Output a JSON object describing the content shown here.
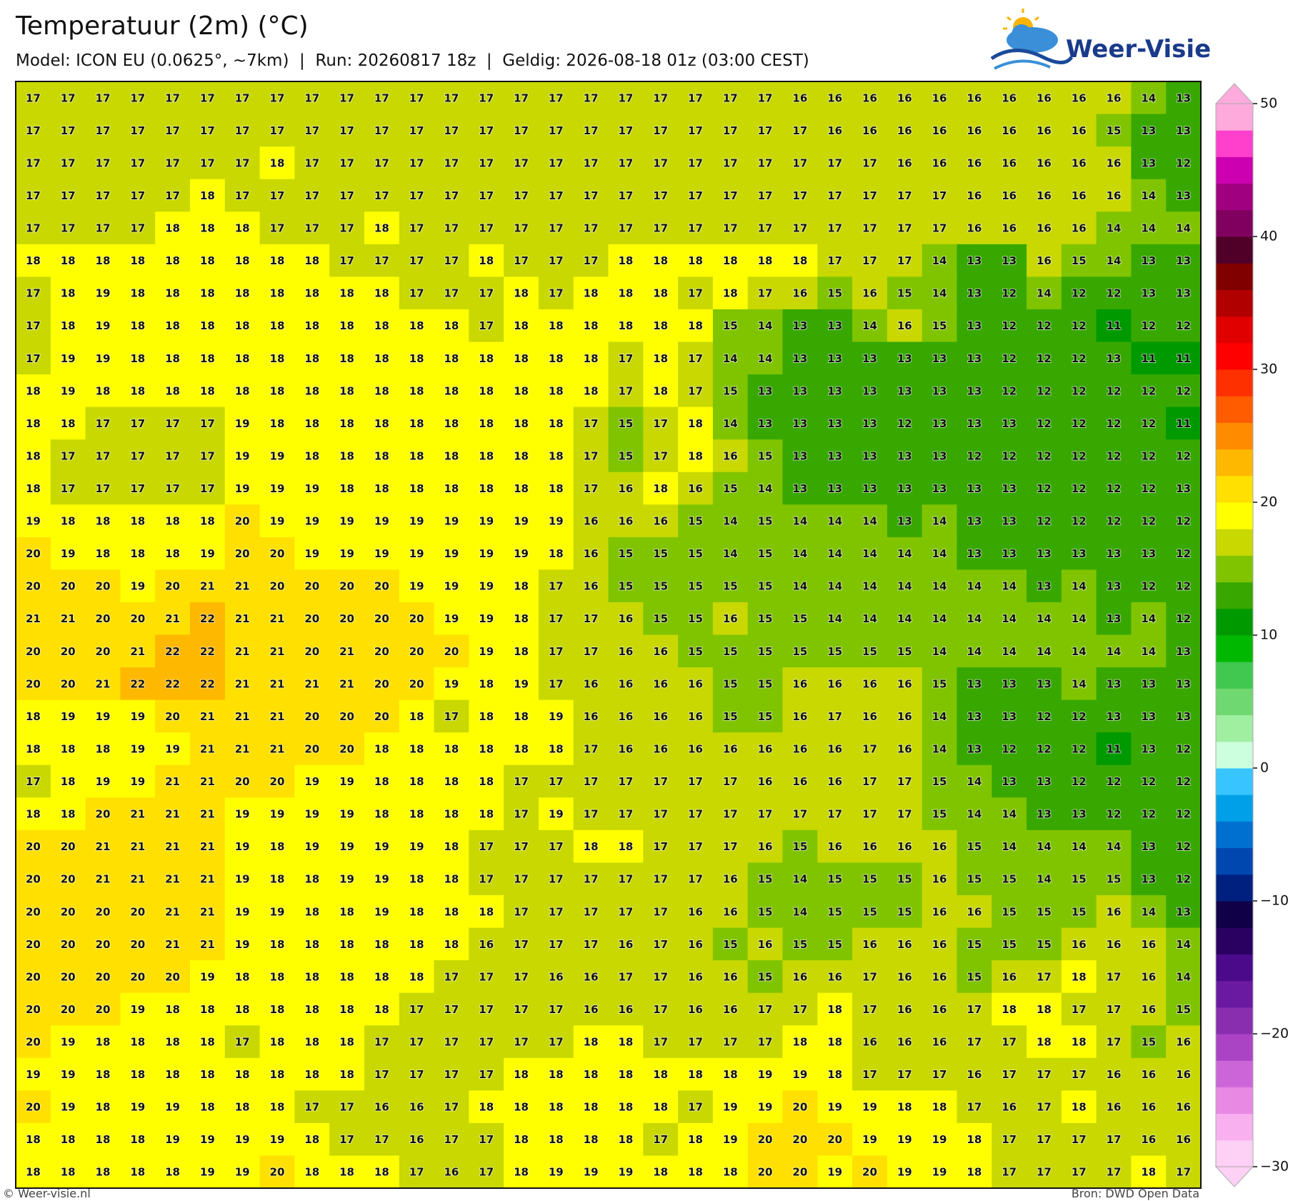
{
  "title": "Temperatuur (2m) (°C)",
  "subtitle": "Model: ICON EU (0.0625°, ~7km)  |  Run: 20260817 18z  |  Geldig: 2026-08-18 01z (03:00 CEST)",
  "logo": "Weer-Visie",
  "credit": "© Weer-visie.nl",
  "source": "Bron: DWD Open Data",
  "grid": [
    [
      17,
      17,
      17,
      17,
      17,
      17,
      17,
      17,
      17,
      17,
      17,
      17,
      17,
      17,
      17,
      17,
      17,
      17,
      17,
      17,
      17,
      17,
      16,
      16,
      16,
      16,
      16,
      16,
      16,
      16,
      16,
      16,
      14,
      13
    ],
    [
      17,
      17,
      17,
      17,
      17,
      17,
      17,
      17,
      17,
      17,
      17,
      17,
      17,
      17,
      17,
      17,
      17,
      17,
      17,
      17,
      17,
      17,
      17,
      16,
      16,
      16,
      16,
      16,
      16,
      16,
      16,
      15,
      13,
      13
    ],
    [
      17,
      17,
      17,
      17,
      17,
      17,
      17,
      18,
      17,
      17,
      17,
      17,
      17,
      17,
      17,
      17,
      17,
      17,
      17,
      17,
      17,
      17,
      17,
      17,
      17,
      16,
      16,
      16,
      16,
      16,
      16,
      16,
      13,
      12
    ],
    [
      17,
      17,
      17,
      17,
      17,
      18,
      17,
      17,
      17,
      17,
      17,
      17,
      17,
      17,
      17,
      17,
      17,
      17,
      17,
      17,
      17,
      17,
      17,
      17,
      17,
      17,
      17,
      16,
      16,
      16,
      16,
      16,
      14,
      13
    ],
    [
      17,
      17,
      17,
      17,
      18,
      18,
      18,
      17,
      17,
      17,
      18,
      17,
      17,
      17,
      17,
      17,
      17,
      17,
      17,
      17,
      17,
      17,
      17,
      17,
      17,
      17,
      17,
      16,
      16,
      16,
      16,
      14,
      14,
      14
    ],
    [
      18,
      18,
      18,
      18,
      18,
      18,
      18,
      18,
      18,
      17,
      17,
      17,
      17,
      18,
      17,
      17,
      17,
      18,
      18,
      18,
      18,
      18,
      18,
      17,
      17,
      17,
      14,
      13,
      13,
      16,
      15,
      14,
      13,
      13
    ],
    [
      17,
      18,
      19,
      18,
      18,
      18,
      18,
      18,
      18,
      18,
      18,
      17,
      17,
      17,
      18,
      17,
      18,
      18,
      18,
      17,
      18,
      17,
      16,
      15,
      16,
      15,
      14,
      13,
      12,
      14,
      12,
      12,
      13,
      13
    ],
    [
      17,
      18,
      19,
      18,
      18,
      18,
      18,
      18,
      18,
      18,
      18,
      18,
      18,
      17,
      18,
      18,
      18,
      18,
      18,
      18,
      15,
      14,
      13,
      13,
      14,
      16,
      15,
      13,
      12,
      12,
      12,
      11,
      12,
      12
    ],
    [
      17,
      19,
      19,
      18,
      18,
      18,
      18,
      18,
      18,
      18,
      18,
      18,
      18,
      18,
      18,
      18,
      18,
      17,
      18,
      17,
      14,
      14,
      13,
      13,
      13,
      13,
      13,
      13,
      12,
      12,
      12,
      13,
      11,
      11
    ],
    [
      18,
      19,
      18,
      18,
      18,
      18,
      18,
      18,
      18,
      18,
      18,
      18,
      18,
      18,
      18,
      18,
      18,
      17,
      18,
      17,
      15,
      13,
      13,
      13,
      13,
      13,
      13,
      13,
      12,
      12,
      12,
      12,
      12,
      12
    ],
    [
      18,
      18,
      17,
      17,
      17,
      17,
      19,
      18,
      18,
      18,
      18,
      18,
      18,
      18,
      18,
      18,
      17,
      15,
      17,
      18,
      14,
      13,
      13,
      13,
      13,
      12,
      13,
      13,
      13,
      12,
      12,
      12,
      12,
      11
    ],
    [
      18,
      17,
      17,
      17,
      17,
      17,
      19,
      19,
      18,
      18,
      18,
      18,
      18,
      18,
      18,
      18,
      17,
      15,
      17,
      18,
      16,
      15,
      13,
      13,
      13,
      13,
      13,
      12,
      12,
      12,
      12,
      12,
      12,
      12
    ],
    [
      18,
      17,
      17,
      17,
      17,
      17,
      19,
      19,
      19,
      18,
      18,
      18,
      18,
      18,
      18,
      18,
      17,
      16,
      18,
      16,
      15,
      14,
      13,
      13,
      13,
      13,
      13,
      13,
      13,
      12,
      12,
      12,
      12,
      13
    ],
    [
      19,
      18,
      18,
      18,
      18,
      18,
      20,
      19,
      19,
      19,
      19,
      19,
      19,
      19,
      19,
      19,
      16,
      16,
      16,
      15,
      14,
      15,
      14,
      14,
      14,
      13,
      14,
      13,
      13,
      12,
      12,
      12,
      12,
      12
    ],
    [
      20,
      19,
      18,
      18,
      18,
      19,
      20,
      20,
      19,
      19,
      19,
      19,
      19,
      19,
      19,
      18,
      16,
      15,
      15,
      15,
      14,
      15,
      14,
      14,
      14,
      14,
      14,
      13,
      13,
      13,
      13,
      13,
      13,
      12
    ],
    [
      20,
      20,
      20,
      19,
      20,
      21,
      21,
      20,
      20,
      20,
      20,
      19,
      19,
      19,
      18,
      17,
      16,
      15,
      15,
      15,
      15,
      15,
      14,
      14,
      14,
      14,
      14,
      14,
      14,
      13,
      14,
      13,
      12,
      12
    ],
    [
      21,
      21,
      20,
      20,
      21,
      22,
      21,
      21,
      20,
      20,
      20,
      20,
      19,
      19,
      18,
      17,
      17,
      16,
      15,
      15,
      16,
      15,
      15,
      14,
      14,
      14,
      14,
      14,
      14,
      14,
      14,
      13,
      14,
      12
    ],
    [
      20,
      20,
      20,
      21,
      22,
      22,
      21,
      21,
      20,
      21,
      20,
      20,
      20,
      19,
      18,
      17,
      17,
      16,
      16,
      15,
      15,
      15,
      15,
      15,
      15,
      15,
      14,
      14,
      14,
      14,
      14,
      14,
      14,
      13
    ],
    [
      20,
      20,
      21,
      22,
      22,
      22,
      21,
      21,
      21,
      21,
      20,
      20,
      19,
      18,
      19,
      17,
      16,
      16,
      16,
      16,
      15,
      15,
      16,
      16,
      16,
      16,
      15,
      13,
      13,
      13,
      14,
      13,
      13,
      13
    ],
    [
      18,
      19,
      19,
      19,
      20,
      21,
      21,
      21,
      20,
      20,
      20,
      18,
      17,
      18,
      18,
      19,
      16,
      16,
      16,
      16,
      15,
      15,
      16,
      17,
      16,
      16,
      14,
      13,
      13,
      12,
      12,
      13,
      13,
      13
    ],
    [
      18,
      18,
      18,
      19,
      19,
      21,
      21,
      21,
      20,
      20,
      18,
      18,
      18,
      18,
      18,
      18,
      17,
      16,
      16,
      16,
      16,
      16,
      16,
      16,
      17,
      16,
      14,
      13,
      12,
      12,
      12,
      11,
      13,
      12
    ],
    [
      17,
      18,
      19,
      19,
      21,
      21,
      20,
      20,
      19,
      19,
      18,
      18,
      18,
      18,
      17,
      17,
      17,
      17,
      17,
      17,
      17,
      16,
      16,
      16,
      17,
      17,
      15,
      14,
      13,
      13,
      12,
      12,
      12,
      12
    ],
    [
      18,
      18,
      20,
      21,
      21,
      21,
      19,
      19,
      19,
      19,
      18,
      18,
      18,
      18,
      17,
      19,
      17,
      17,
      17,
      17,
      17,
      17,
      17,
      17,
      17,
      17,
      15,
      14,
      14,
      13,
      13,
      12,
      12,
      12
    ],
    [
      20,
      20,
      21,
      21,
      21,
      21,
      19,
      18,
      19,
      19,
      19,
      19,
      18,
      17,
      17,
      17,
      18,
      18,
      17,
      17,
      17,
      16,
      15,
      16,
      16,
      16,
      16,
      15,
      14,
      14,
      14,
      14,
      13,
      12
    ],
    [
      20,
      20,
      21,
      21,
      21,
      21,
      19,
      18,
      18,
      19,
      19,
      18,
      18,
      17,
      17,
      17,
      17,
      17,
      17,
      17,
      16,
      15,
      14,
      15,
      15,
      15,
      16,
      15,
      15,
      14,
      15,
      15,
      13,
      12
    ],
    [
      20,
      20,
      20,
      20,
      21,
      21,
      19,
      19,
      18,
      18,
      19,
      18,
      18,
      18,
      17,
      17,
      17,
      17,
      17,
      16,
      16,
      15,
      14,
      15,
      15,
      15,
      16,
      16,
      15,
      15,
      15,
      16,
      14,
      13
    ],
    [
      20,
      20,
      20,
      20,
      21,
      21,
      19,
      18,
      18,
      18,
      18,
      18,
      18,
      16,
      17,
      17,
      17,
      16,
      17,
      16,
      15,
      16,
      15,
      15,
      16,
      16,
      16,
      15,
      15,
      15,
      16,
      16,
      16,
      14
    ],
    [
      20,
      20,
      20,
      20,
      20,
      19,
      18,
      18,
      18,
      18,
      18,
      18,
      17,
      17,
      17,
      16,
      16,
      17,
      17,
      16,
      16,
      15,
      16,
      16,
      17,
      16,
      16,
      15,
      16,
      17,
      18,
      17,
      16,
      14
    ],
    [
      20,
      20,
      20,
      19,
      18,
      18,
      18,
      18,
      18,
      18,
      18,
      17,
      17,
      17,
      17,
      17,
      16,
      16,
      17,
      16,
      16,
      17,
      17,
      18,
      17,
      16,
      16,
      17,
      18,
      18,
      17,
      17,
      16,
      15
    ],
    [
      20,
      19,
      18,
      18,
      18,
      18,
      17,
      18,
      18,
      18,
      17,
      17,
      17,
      17,
      17,
      17,
      18,
      18,
      17,
      17,
      17,
      17,
      18,
      18,
      16,
      16,
      16,
      17,
      17,
      18,
      18,
      17,
      15,
      16
    ],
    [
      19,
      19,
      18,
      18,
      18,
      18,
      18,
      18,
      18,
      18,
      17,
      17,
      17,
      17,
      18,
      18,
      18,
      18,
      18,
      18,
      18,
      19,
      19,
      18,
      17,
      17,
      17,
      16,
      17,
      17,
      17,
      16,
      16,
      16
    ],
    [
      20,
      19,
      18,
      19,
      19,
      18,
      18,
      18,
      17,
      17,
      16,
      16,
      17,
      18,
      18,
      18,
      18,
      18,
      18,
      17,
      19,
      19,
      20,
      19,
      19,
      18,
      18,
      17,
      16,
      17,
      18,
      16,
      16,
      16
    ],
    [
      18,
      18,
      18,
      18,
      19,
      19,
      19,
      19,
      18,
      17,
      17,
      16,
      17,
      17,
      18,
      18,
      18,
      18,
      17,
      18,
      19,
      20,
      20,
      20,
      19,
      19,
      19,
      18,
      17,
      17,
      17,
      17,
      16,
      16
    ],
    [
      18,
      18,
      18,
      18,
      18,
      19,
      19,
      20,
      18,
      18,
      18,
      17,
      16,
      17,
      18,
      19,
      19,
      19,
      18,
      18,
      18,
      20,
      20,
      19,
      20,
      19,
      19,
      18,
      17,
      17,
      17,
      17,
      18,
      17
    ]
  ],
  "colorbar": {
    "lim": [
      -30,
      50
    ],
    "ticks": [
      {
        "value": -30,
        "label": "−30"
      },
      {
        "value": -20,
        "label": "−20"
      },
      {
        "value": -10,
        "label": "−10"
      },
      0,
      10,
      20,
      30,
      40,
      50
    ],
    "colors": [
      "#fdd0f5",
      "#f8b0ef",
      "#e88ae3",
      "#cc66d8",
      "#aa44c4",
      "#8a2eb0",
      "#6a1aa0",
      "#4a0a8a",
      "#2a0060",
      "#100048",
      "#002080",
      "#0048b0",
      "#0070d0",
      "#00a0e8",
      "#38c4ff",
      "#ccffdd",
      "#a0eea0",
      "#70d870",
      "#40c850",
      "#00b800",
      "#009a00",
      "#38a800",
      "#80c400",
      "#c8d800",
      "#ffff00",
      "#ffe000",
      "#ffb800",
      "#ff8c00",
      "#ff5c00",
      "#ff3000",
      "#ff0000",
      "#e00000",
      "#b00000",
      "#800000",
      "#500028",
      "#800060",
      "#a00080",
      "#cc00b0",
      "#ff40cc",
      "#ffaadd"
    ]
  }
}
